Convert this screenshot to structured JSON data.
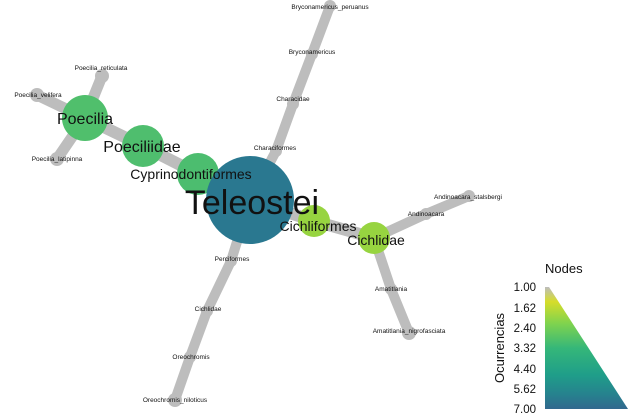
{
  "tree": {
    "root": "Teleostei",
    "nodes": {
      "teleostei": "Teleostei",
      "cyprinodontiformes": "Cyprinodontiformes",
      "poeciliidae": "Poeciliidae",
      "poecilia": "Poecilia",
      "poecilia_velifera": "Poecilia_velifera",
      "poecilia_reticulata": "Poecilia_reticulata",
      "poecilia_latipinna": "Poecilia_latipinna",
      "characiformes": "Characiformes",
      "characidae": "Characidae",
      "bryconamericus": "Bryconamericus",
      "bryconamericus_peruanus": "Bryconamericus_peruanus",
      "cichliformes": "Cichliformes",
      "cichlidae_top": "Cichlidae",
      "andinoacara": "Andinoacara",
      "andinoacara_stalsbergi": "Andinoacara_stalsbergi",
      "amatitlania": "Amatitlania",
      "amatitlania_nigrofasciata": "Amatitlania_nigrofasciata",
      "perciformes": "Perciformes",
      "cichlidae_bottom": "Cichlidae",
      "oreochromis": "Oreochromis",
      "oreochromis_niloticus": "Oreochromis_niloticus"
    },
    "colors": {
      "edge": "#bdbdbd",
      "root": "#2a7890",
      "node_green": "#55c06b",
      "node_lime": "#97d440",
      "leaf": "#bdbdbd"
    }
  },
  "legend": {
    "title": "Nodes",
    "axis_label": "Ocurrencias",
    "ticks": [
      "1.00",
      "1.62",
      "2.40",
      "3.32",
      "4.40",
      "5.62",
      "7.00"
    ]
  }
}
